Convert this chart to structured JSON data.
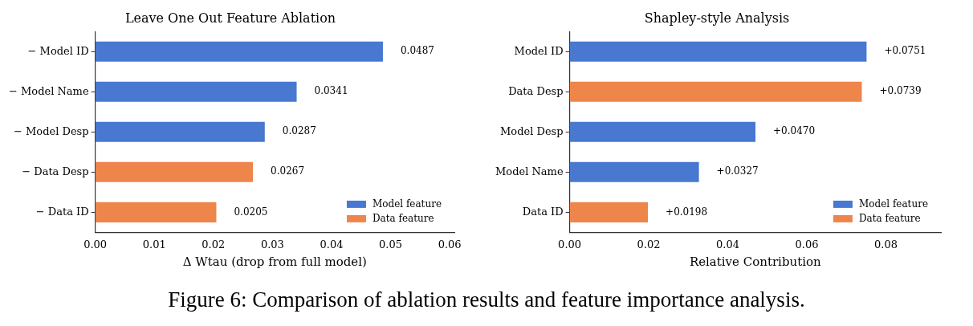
{
  "chart_data": [
    {
      "type": "bar",
      "orientation": "horizontal",
      "title": "Leave One Out Feature Ablation",
      "xlabel": "Δ Wtau (drop from full model)",
      "categories": [
        "− Model ID",
        "− Model Name",
        "− Model Desp",
        "− Data Desp",
        "− Data ID"
      ],
      "series": [
        {
          "name": "Model feature",
          "color": "#4878d0",
          "values": [
            0.0487,
            0.0341,
            0.0287,
            null,
            null
          ],
          "value_labels": [
            "0.0487",
            "0.0341",
            "0.0287",
            null,
            null
          ]
        },
        {
          "name": "Data feature",
          "color": "#ee854a",
          "values": [
            null,
            null,
            null,
            0.0267,
            0.0205
          ],
          "value_labels": [
            null,
            null,
            null,
            "0.0267",
            "0.0205"
          ]
        }
      ],
      "xlim": [
        0,
        0.0608
      ],
      "xticks": [
        {
          "value": 0,
          "label": "0.00"
        },
        {
          "value": 0.01,
          "label": "0.01"
        },
        {
          "value": 0.02,
          "label": "0.02"
        },
        {
          "value": 0.03,
          "label": "0.03"
        },
        {
          "value": 0.04,
          "label": "0.04"
        },
        {
          "value": 0.05,
          "label": "0.05"
        },
        {
          "value": 0.06,
          "label": "0.06"
        }
      ],
      "grid": false,
      "legend": "bottom right",
      "annotations": [
        "Figure 6: Comparison of ablation results and feature importance analysis."
      ]
    },
    {
      "type": "bar",
      "orientation": "horizontal",
      "title": "Shapley-style Analysis",
      "xlabel": "Relative Contribution",
      "categories": [
        "Model ID",
        "Data Desp",
        "Model Desp",
        "Model Name",
        "Data ID"
      ],
      "series": [
        {
          "name": "Model feature",
          "color": "#4878d0",
          "values": [
            0.0751,
            null,
            0.047,
            0.0327,
            null
          ],
          "value_labels": [
            "+0.0751",
            null,
            "+0.0470",
            "+0.0327",
            null
          ]
        },
        {
          "name": "Data feature",
          "color": "#ee854a",
          "values": [
            null,
            0.0739,
            null,
            null,
            0.0198
          ],
          "value_labels": [
            null,
            "+0.0739",
            null,
            null,
            "+0.0198"
          ]
        }
      ],
      "xlim": [
        0,
        0.0939
      ],
      "xticks": [
        {
          "value": 0,
          "label": "0.00"
        },
        {
          "value": 0.02,
          "label": "0.02"
        },
        {
          "value": 0.04,
          "label": "0.04"
        },
        {
          "value": 0.06,
          "label": "0.06"
        },
        {
          "value": 0.08,
          "label": "0.08"
        }
      ],
      "grid": false,
      "legend": "bottom right"
    }
  ]
}
